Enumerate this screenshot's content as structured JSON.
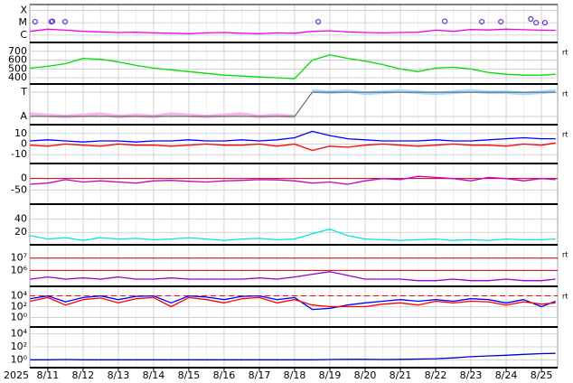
{
  "chart_data": {
    "type": "panels",
    "year_label": "2025",
    "xlim": [
      10.49,
      25.46
    ],
    "xticks": [
      {
        "value": 11,
        "label": "8/11"
      },
      {
        "value": 12,
        "label": "8/12"
      },
      {
        "value": 13,
        "label": "8/13"
      },
      {
        "value": 14,
        "label": "8/14"
      },
      {
        "value": 15,
        "label": "8/15"
      },
      {
        "value": 16,
        "label": "8/16"
      },
      {
        "value": 17,
        "label": "8/17"
      },
      {
        "value": 18,
        "label": "8/18"
      },
      {
        "value": 19,
        "label": "8/19"
      },
      {
        "value": 20,
        "label": "8/20"
      },
      {
        "value": 21,
        "label": "8/21"
      },
      {
        "value": 22,
        "label": "8/22"
      },
      {
        "value": 23,
        "label": "8/23"
      },
      {
        "value": 24,
        "label": "8/24"
      },
      {
        "value": 25,
        "label": "8/25"
      }
    ],
    "grid": true,
    "x": [
      10.5,
      11,
      11.5,
      12,
      12.5,
      13,
      13.5,
      14,
      14.5,
      15,
      15.5,
      16,
      16.5,
      17,
      17.5,
      18,
      18.5,
      19,
      19.5,
      20,
      20.5,
      21,
      21.5,
      22,
      22.5,
      23,
      23.5,
      24,
      24.5,
      25,
      25.4
    ],
    "panels": [
      {
        "type": "line",
        "log": true,
        "ylim": [
          3e-07,
          0.00025
        ],
        "yticks": [
          {
            "value": 0.0001,
            "label": "X"
          },
          {
            "value": 1e-05,
            "label": "M"
          },
          {
            "value": 1e-06,
            "label": "C"
          }
        ],
        "series": [
          {
            "color": "#ee00ee",
            "values": [
              2e-06,
              3e-06,
              2.5e-06,
              2e-06,
              1.8e-06,
              1.6e-06,
              1.7e-06,
              1.5e-06,
              1.4e-06,
              1.3e-06,
              1.5e-06,
              1.6e-06,
              1.4e-06,
              1.3e-06,
              1.5e-06,
              1.4e-06,
              2e-06,
              2.2e-06,
              1.8e-06,
              1.6e-06,
              1.5e-06,
              1.6e-06,
              1.7e-06,
              2.5e-06,
              2e-06,
              2.8e-06,
              2.6e-06,
              3e-06,
              2.7e-06,
              2.5e-06,
              2.4e-06
            ]
          },
          {
            "color": "#6633cc",
            "marker": "circle",
            "x": [
              10.64,
              11.1,
              11.13,
              11.49,
              18.67,
              22.26,
              23.31,
              23.85,
              24.7,
              24.85,
              25.1
            ],
            "values": [
              1.2e-05,
              1.2e-05,
              1.3e-05,
              1.2e-05,
              1.2e-05,
              1.3e-05,
              1.2e-05,
              1.2e-05,
              2e-05,
              1e-05,
              1e-05
            ]
          }
        ]
      },
      {
        "type": "line",
        "side_label": "rt",
        "ylim": [
          340,
          790
        ],
        "yticks": [
          700,
          600,
          500,
          400
        ],
        "series": [
          {
            "color": "#00dd00",
            "values": [
              510,
              530,
              560,
              620,
              610,
              580,
              540,
              510,
              490,
              470,
              450,
              430,
              420,
              410,
              400,
              390,
              600,
              660,
              620,
              590,
              550,
              500,
              470,
              510,
              520,
              500,
              460,
              440,
              430,
              430,
              440
            ]
          }
        ]
      },
      {
        "type": "line",
        "side_label": "rt",
        "ylim": [
          -0.3,
          1.3
        ],
        "yticks": [
          {
            "value": 1,
            "label": "T"
          },
          {
            "value": 0,
            "label": "A"
          }
        ],
        "series": [
          {
            "color": "#f4b6e6",
            "width": 4,
            "values": [
              0.1,
              0.05,
              0,
              0.05,
              0.1,
              0,
              0.05,
              0,
              0.1,
              0.05,
              0,
              0.05,
              0.1,
              0,
              0.05,
              0,
              null,
              null,
              null,
              null,
              null,
              null,
              null,
              null,
              null,
              null,
              null,
              null,
              null,
              null,
              null
            ]
          },
          {
            "color": "#a8dcff",
            "width": 4,
            "values": [
              null,
              null,
              null,
              null,
              null,
              null,
              null,
              null,
              null,
              null,
              null,
              null,
              null,
              null,
              null,
              null,
              1.05,
              1.0,
              1.05,
              0.95,
              1.0,
              1.05,
              1.0,
              0.95,
              1.0,
              1.05,
              1.0,
              1.0,
              0.95,
              1.0,
              1.05
            ]
          },
          {
            "color": "#555555",
            "width": 1,
            "values": [
              0,
              0,
              0,
              0,
              0,
              0,
              0,
              0,
              0,
              0,
              0,
              0,
              0,
              0,
              0,
              0,
              1,
              1,
              1,
              1,
              1,
              1,
              1,
              1,
              1,
              1,
              1,
              1,
              1,
              1,
              1
            ]
          }
        ]
      },
      {
        "type": "line",
        "side_label": "rt",
        "ylim": [
          -17.5,
          17.5
        ],
        "yticks": [
          10,
          0,
          -10
        ],
        "series": [
          {
            "color": "#0000ff",
            "values": [
              3,
              4,
              3,
              2,
              3,
              3,
              2,
              3,
              3,
              4,
              3,
              3,
              4,
              3,
              4,
              6,
              12,
              8,
              5,
              4,
              3,
              3,
              3,
              4,
              3,
              3,
              4,
              5,
              6,
              5,
              5
            ]
          },
          {
            "color": "#ff0000",
            "values": [
              -1,
              -2,
              0,
              -1,
              -2,
              0,
              -1,
              -1,
              -2,
              -1,
              0,
              -1,
              -1,
              0,
              -2,
              0,
              -6,
              -2,
              -3,
              -1,
              0,
              -1,
              -2,
              -1,
              0,
              -1,
              -1,
              -2,
              0,
              -1,
              1
            ]
          }
        ]
      },
      {
        "type": "line",
        "ylim": [
          -108,
          62
        ],
        "yticks": [
          0,
          -50
        ],
        "hlines": [
          {
            "value": 0,
            "color": "#cc0000"
          }
        ],
        "series": [
          {
            "color": "#cc00cc",
            "values": [
              -25,
              -20,
              -5,
              -15,
              -10,
              -15,
              -20,
              -10,
              -8,
              -12,
              -15,
              -10,
              -8,
              -5,
              -6,
              -10,
              -20,
              -15,
              -25,
              -10,
              0,
              -5,
              10,
              5,
              0,
              -10,
              5,
              0,
              -10,
              0,
              -5
            ]
          }
        ]
      },
      {
        "type": "line",
        "ylim": [
          2.7,
          61
        ],
        "yticks": [
          40,
          20
        ],
        "series": [
          {
            "color": "#00e5e5",
            "values": [
              15,
              10,
              12,
              8,
              12,
              10,
              11,
              9,
              10,
              12,
              10,
              8,
              10,
              11,
              9,
              10,
              18,
              25,
              15,
              10,
              9,
              8,
              9,
              10,
              8,
              9,
              8,
              10,
              9,
              9,
              10
            ]
          }
        ]
      },
      {
        "type": "line",
        "log": true,
        "side_label": "rt",
        "ylim": [
          62000,
          100000000
        ],
        "yticks": [
          {
            "value": 10000000,
            "label": "10⁷"
          },
          {
            "value": 1000000,
            "label": "10⁶"
          }
        ],
        "hlines": [
          {
            "value": 10000000,
            "color": "#cc0000"
          },
          {
            "value": 1000000,
            "color": "#cc0000"
          }
        ],
        "series": [
          {
            "color": "#9900cc",
            "values": [
              200000,
              300000,
              200000,
              250000,
              200000,
              300000,
              200000,
              200000,
              250000,
              200000,
              200000,
              200000,
              200000,
              250000,
              200000,
              300000,
              500000,
              800000,
              400000,
              200000,
              200000,
              200000,
              150000,
              150000,
              200000,
              150000,
              150000,
              200000,
              150000,
              150000,
              200000
            ]
          }
        ]
      },
      {
        "type": "line",
        "log": true,
        "side_label": "rt",
        "ylim": [
          0.025,
          400000
        ],
        "yticks": [
          {
            "value": 10000,
            "label": "10⁴"
          },
          {
            "value": 100,
            "label": "10²"
          },
          {
            "value": 1,
            "label": "10⁰"
          }
        ],
        "hlines": [
          {
            "value": 10000,
            "color": "#ff0000",
            "dash": true
          }
        ],
        "series": [
          {
            "color": "#0000ff",
            "values": [
              3000,
              10000,
              800,
              5000,
              10000,
              2000,
              8000,
              10000,
              500,
              10000,
              6000,
              2000,
              8000,
              10000,
              2000,
              5000,
              30,
              50,
              200,
              500,
              1000,
              2000,
              1000,
              2000,
              1000,
              3000,
              2000,
              500,
              2000,
              100,
              1000
            ]
          },
          {
            "color": "#ff0000",
            "values": [
              1000,
              5000,
              200,
              2000,
              4000,
              500,
              3000,
              5000,
              100,
              5000,
              2000,
              500,
              3000,
              5000,
              500,
              2000,
              200,
              100,
              100,
              100,
              300,
              500,
              200,
              1000,
              500,
              1000,
              800,
              200,
              800,
              300,
              500
            ]
          }
        ]
      },
      {
        "type": "line",
        "log": true,
        "ylim": [
          0.085,
          85000
        ],
        "yticks": [
          {
            "value": 10000,
            "label": "10⁴"
          },
          {
            "value": 100,
            "label": "10²"
          },
          {
            "value": 1,
            "label": "10⁰"
          }
        ],
        "series": [
          {
            "color": "#0000cc",
            "values": [
              1,
              1,
              1.1,
              1,
              1,
              1,
              1,
              1,
              1,
              1,
              1,
              1,
              1,
              1,
              1,
              1,
              1,
              1.1,
              1.2,
              1.2,
              1.1,
              1.2,
              1.3,
              1.5,
              2,
              3,
              4,
              5,
              7,
              9,
              10
            ]
          }
        ]
      }
    ]
  }
}
